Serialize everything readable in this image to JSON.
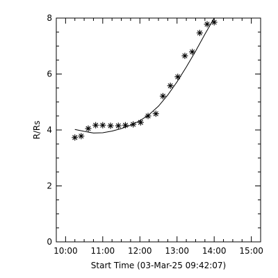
{
  "chart_data": {
    "type": "scatter",
    "title": "",
    "xlabel": "Start Time (03-Mar-25 09:42:07)",
    "ylabel": "R/Rs",
    "xlim": [
      9.75,
      15.25
    ],
    "ylim": [
      0,
      8
    ],
    "x_ticks": [
      {
        "value": 10,
        "label": "10:00"
      },
      {
        "value": 11,
        "label": "11:00"
      },
      {
        "value": 12,
        "label": "12:00"
      },
      {
        "value": 13,
        "label": "13:00"
      },
      {
        "value": 14,
        "label": "14:00"
      },
      {
        "value": 15,
        "label": "15:00"
      }
    ],
    "y_ticks": [
      {
        "value": 0,
        "label": "0"
      },
      {
        "value": 2,
        "label": "2"
      },
      {
        "value": 4,
        "label": "4"
      },
      {
        "value": 6,
        "label": "6"
      },
      {
        "value": 8,
        "label": "8"
      }
    ],
    "grid": false,
    "series": [
      {
        "marker": "asterisk",
        "x": [
          10.25,
          10.42,
          10.61,
          10.81,
          11.0,
          11.21,
          11.42,
          11.61,
          11.82,
          12.02,
          12.22,
          12.43,
          12.62,
          12.82,
          13.02,
          13.21,
          13.41,
          13.61,
          13.81,
          14.0
        ],
        "y": [
          3.73,
          3.78,
          4.05,
          4.17,
          4.17,
          4.15,
          4.15,
          4.17,
          4.2,
          4.27,
          4.5,
          4.58,
          5.21,
          5.58,
          5.9,
          6.65,
          6.79,
          7.47,
          7.78,
          7.85
        ]
      },
      {
        "marker": "line",
        "x": [
          10.25,
          10.5,
          10.75,
          11.0,
          11.25,
          11.5,
          11.75,
          12.0,
          12.25,
          12.5,
          12.75,
          13.0,
          13.25,
          13.5,
          13.75,
          14.0
        ],
        "y": [
          4.02,
          3.95,
          3.89,
          3.9,
          3.96,
          4.05,
          4.17,
          4.33,
          4.55,
          4.85,
          5.25,
          5.72,
          6.25,
          6.82,
          7.42,
          8.0
        ]
      }
    ]
  }
}
